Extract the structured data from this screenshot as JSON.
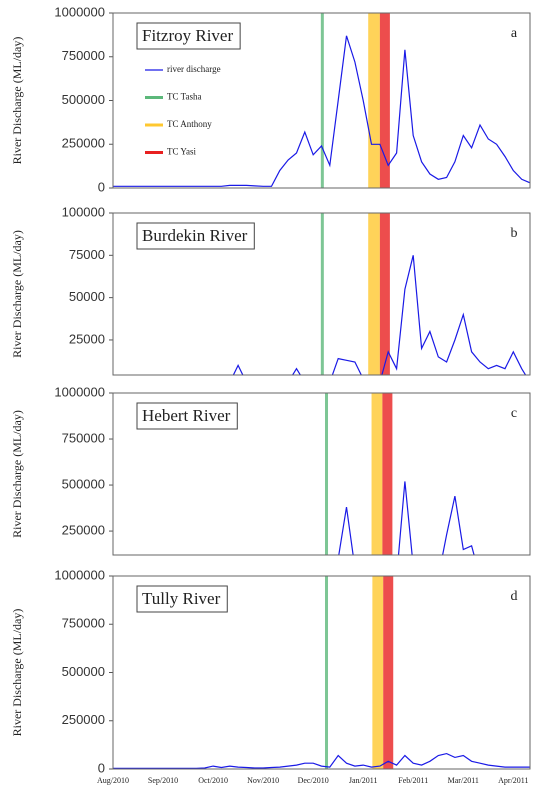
{
  "chart_data": [
    {
      "type": "line",
      "title": "Fitzroy River",
      "panel_label": "a",
      "y_label": "River Discharge (ML/day)",
      "ylim": [
        0,
        1000000
      ],
      "yticks": [
        0,
        250000,
        500000,
        750000,
        1000000
      ],
      "legend": "upper left",
      "series": [
        {
          "name": "river discharge",
          "color": "#1a1ae6",
          "values": [
            10000,
            10000,
            10000,
            10000,
            10000,
            10000,
            10000,
            10000,
            10000,
            10000,
            10000,
            10000,
            10000,
            10000,
            15000,
            15000,
            15000,
            12000,
            10000,
            10000,
            100000,
            160000,
            200000,
            320000,
            190000,
            240000,
            130000,
            500000,
            870000,
            720000,
            500000,
            250000,
            250000,
            130000,
            200000,
            790000,
            300000,
            150000,
            80000,
            50000,
            60000,
            150000,
            300000,
            230000,
            360000,
            280000,
            250000,
            180000,
            100000,
            50000,
            30000
          ]
        }
      ],
      "events": [
        {
          "name": "TC Tasha",
          "color": "#5cb87a",
          "span": [
            25.1,
            25.1
          ]
        },
        {
          "name": "TC Anthony",
          "color": "#ffc830",
          "span": [
            30.6,
            32.0
          ]
        },
        {
          "name": "TC Yasi",
          "color": "#e82020",
          "span": [
            32.0,
            33.2
          ]
        }
      ]
    },
    {
      "type": "line",
      "title": "Burdekin River",
      "panel_label": "b",
      "y_label": "River Discharge (ML/day)",
      "ylim": [
        4300,
        100000
      ],
      "yticks": [
        25000,
        50000,
        75000,
        100000
      ],
      "series": [
        {
          "color": "#1a1ae6",
          "values": [
            0,
            0,
            0,
            0,
            0,
            0,
            0,
            0,
            0,
            0,
            0,
            0,
            0,
            0,
            0,
            10000,
            0,
            0,
            0,
            0,
            0,
            0,
            8000,
            0,
            0,
            0,
            0,
            14000,
            13000,
            12000,
            2000,
            0,
            0,
            18000,
            8000,
            55000,
            75000,
            20000,
            30000,
            15000,
            12000,
            25000,
            40000,
            18000,
            12000,
            8000,
            10000,
            8000,
            18000,
            8000,
            0
          ]
        }
      ],
      "events": [
        {
          "color": "#5cb87a",
          "span": [
            25.1,
            25.1
          ]
        },
        {
          "color": "#ffc830",
          "span": [
            30.6,
            32.0
          ]
        },
        {
          "color": "#e82020",
          "span": [
            32.0,
            33.2
          ]
        }
      ]
    },
    {
      "type": "line",
      "title": "Hebert River",
      "panel_label": "c",
      "y_label": "River Discharge (ML/day)",
      "ylim": [
        120000,
        1000000
      ],
      "yticks": [
        250000,
        500000,
        750000,
        1000000
      ],
      "series": [
        {
          "color": "#1a1ae6",
          "values": [
            0,
            0,
            0,
            0,
            0,
            0,
            0,
            0,
            0,
            0,
            0,
            0,
            0,
            0,
            0,
            0,
            0,
            0,
            0,
            0,
            0,
            0,
            0,
            0,
            0,
            0,
            0,
            100000,
            380000,
            50000,
            0,
            0,
            0,
            0,
            0,
            520000,
            60000,
            0,
            0,
            0,
            230000,
            440000,
            150000,
            170000,
            0,
            0,
            0,
            0,
            0,
            0,
            0
          ]
        }
      ],
      "events": [
        {
          "color": "#5cb87a",
          "span": [
            25.6,
            25.6
          ]
        },
        {
          "color": "#ffc830",
          "span": [
            31.0,
            32.3
          ]
        },
        {
          "color": "#e82020",
          "span": [
            32.3,
            33.5
          ]
        }
      ]
    },
    {
      "type": "line",
      "title": "Tully River",
      "panel_label": "d",
      "y_label": "River Discharge (ML/day)",
      "ylim": [
        0,
        1000000
      ],
      "yticks": [
        0,
        250000,
        500000,
        750000,
        1000000
      ],
      "categories": [
        "Aug/2010",
        null,
        null,
        null,
        null,
        null,
        "Sep/2010",
        null,
        null,
        null,
        null,
        null,
        "Oct/2010",
        null,
        null,
        null,
        null,
        null,
        "Nov/2010",
        null,
        null,
        null,
        null,
        null,
        "Dec/2010",
        null,
        null,
        null,
        null,
        null,
        "Jan/2011",
        null,
        null,
        null,
        null,
        null,
        "Feb/2011",
        null,
        null,
        null,
        null,
        null,
        "Mar/2011",
        null,
        null,
        null,
        null,
        null,
        "Apr/2011",
        null,
        null
      ],
      "series": [
        {
          "color": "#1a1ae6",
          "values": [
            3000,
            3000,
            3000,
            3000,
            3000,
            3000,
            3000,
            3000,
            3000,
            3000,
            3000,
            5000,
            15000,
            8000,
            15000,
            10000,
            8000,
            5000,
            5000,
            8000,
            10000,
            15000,
            20000,
            30000,
            30000,
            15000,
            10000,
            70000,
            30000,
            15000,
            20000,
            10000,
            15000,
            40000,
            20000,
            70000,
            30000,
            20000,
            40000,
            70000,
            80000,
            60000,
            70000,
            40000,
            30000,
            20000,
            15000,
            10000,
            10000,
            10000,
            10000
          ]
        }
      ],
      "events": [
        {
          "color": "#5cb87a",
          "span": [
            25.6,
            25.6
          ]
        },
        {
          "color": "#ffc830",
          "span": [
            31.1,
            32.4
          ]
        },
        {
          "color": "#e82020",
          "span": [
            32.4,
            33.6
          ]
        }
      ]
    }
  ]
}
